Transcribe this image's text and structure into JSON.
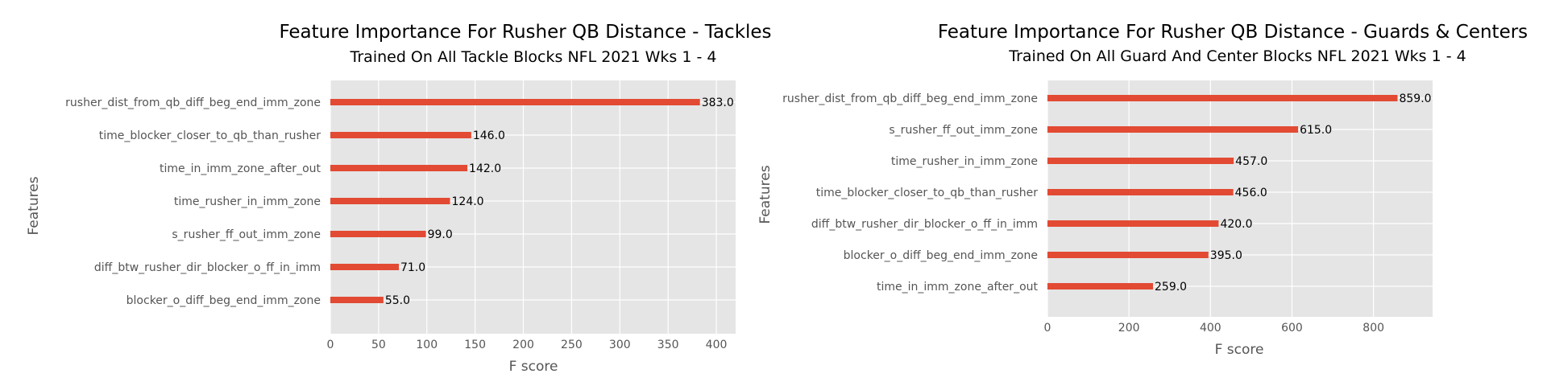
{
  "chart_data": [
    {
      "type": "bar",
      "orientation": "horizontal",
      "title": "Feature Importance For Rusher QB Distance - Tackles",
      "subtitle": "Trained On All Tackle Blocks NFL 2021 Wks 1 - 4",
      "xlabel": "F score",
      "ylabel": "Features",
      "xlim": [
        0,
        420
      ],
      "xticks": [
        0,
        50,
        100,
        150,
        200,
        250,
        300,
        350,
        400
      ],
      "grid": true,
      "bar_color": "#E24A33",
      "categories": [
        "rusher_dist_from_qb_diff_beg_end_imm_zone",
        "time_blocker_closer_to_qb_than_rusher",
        "time_in_imm_zone_after_out",
        "time_rusher_in_imm_zone",
        "s_rusher_ff_out_imm_zone",
        "diff_btw_rusher_dir_blocker_o_ff_in_imm",
        "blocker_o_diff_beg_end_imm_zone"
      ],
      "values": [
        383.0,
        146.0,
        142.0,
        124.0,
        99.0,
        71.0,
        55.0
      ],
      "value_labels": [
        "383.0",
        "146.0",
        "142.0",
        "124.0",
        "99.0",
        "71.0",
        "55.0"
      ]
    },
    {
      "type": "bar",
      "orientation": "horizontal",
      "title": "Feature Importance For Rusher QB Distance - Guards & Centers",
      "subtitle": "Trained On All Guard And Center Blocks NFL 2021 Wks 1 - 4",
      "xlabel": "F score",
      "ylabel": "Features",
      "xlim": [
        0,
        945
      ],
      "xticks": [
        0,
        200,
        400,
        600,
        800
      ],
      "grid": true,
      "bar_color": "#E24A33",
      "categories": [
        "rusher_dist_from_qb_diff_beg_end_imm_zone",
        "s_rusher_ff_out_imm_zone",
        "time_rusher_in_imm_zone",
        "time_blocker_closer_to_qb_than_rusher",
        "diff_btw_rusher_dir_blocker_o_ff_in_imm",
        "blocker_o_diff_beg_end_imm_zone",
        "time_in_imm_zone_after_out"
      ],
      "values": [
        859.0,
        615.0,
        457.0,
        456.0,
        420.0,
        395.0,
        259.0
      ],
      "value_labels": [
        "859.0",
        "615.0",
        "457.0",
        "456.0",
        "420.0",
        "395.0",
        "259.0"
      ]
    }
  ]
}
